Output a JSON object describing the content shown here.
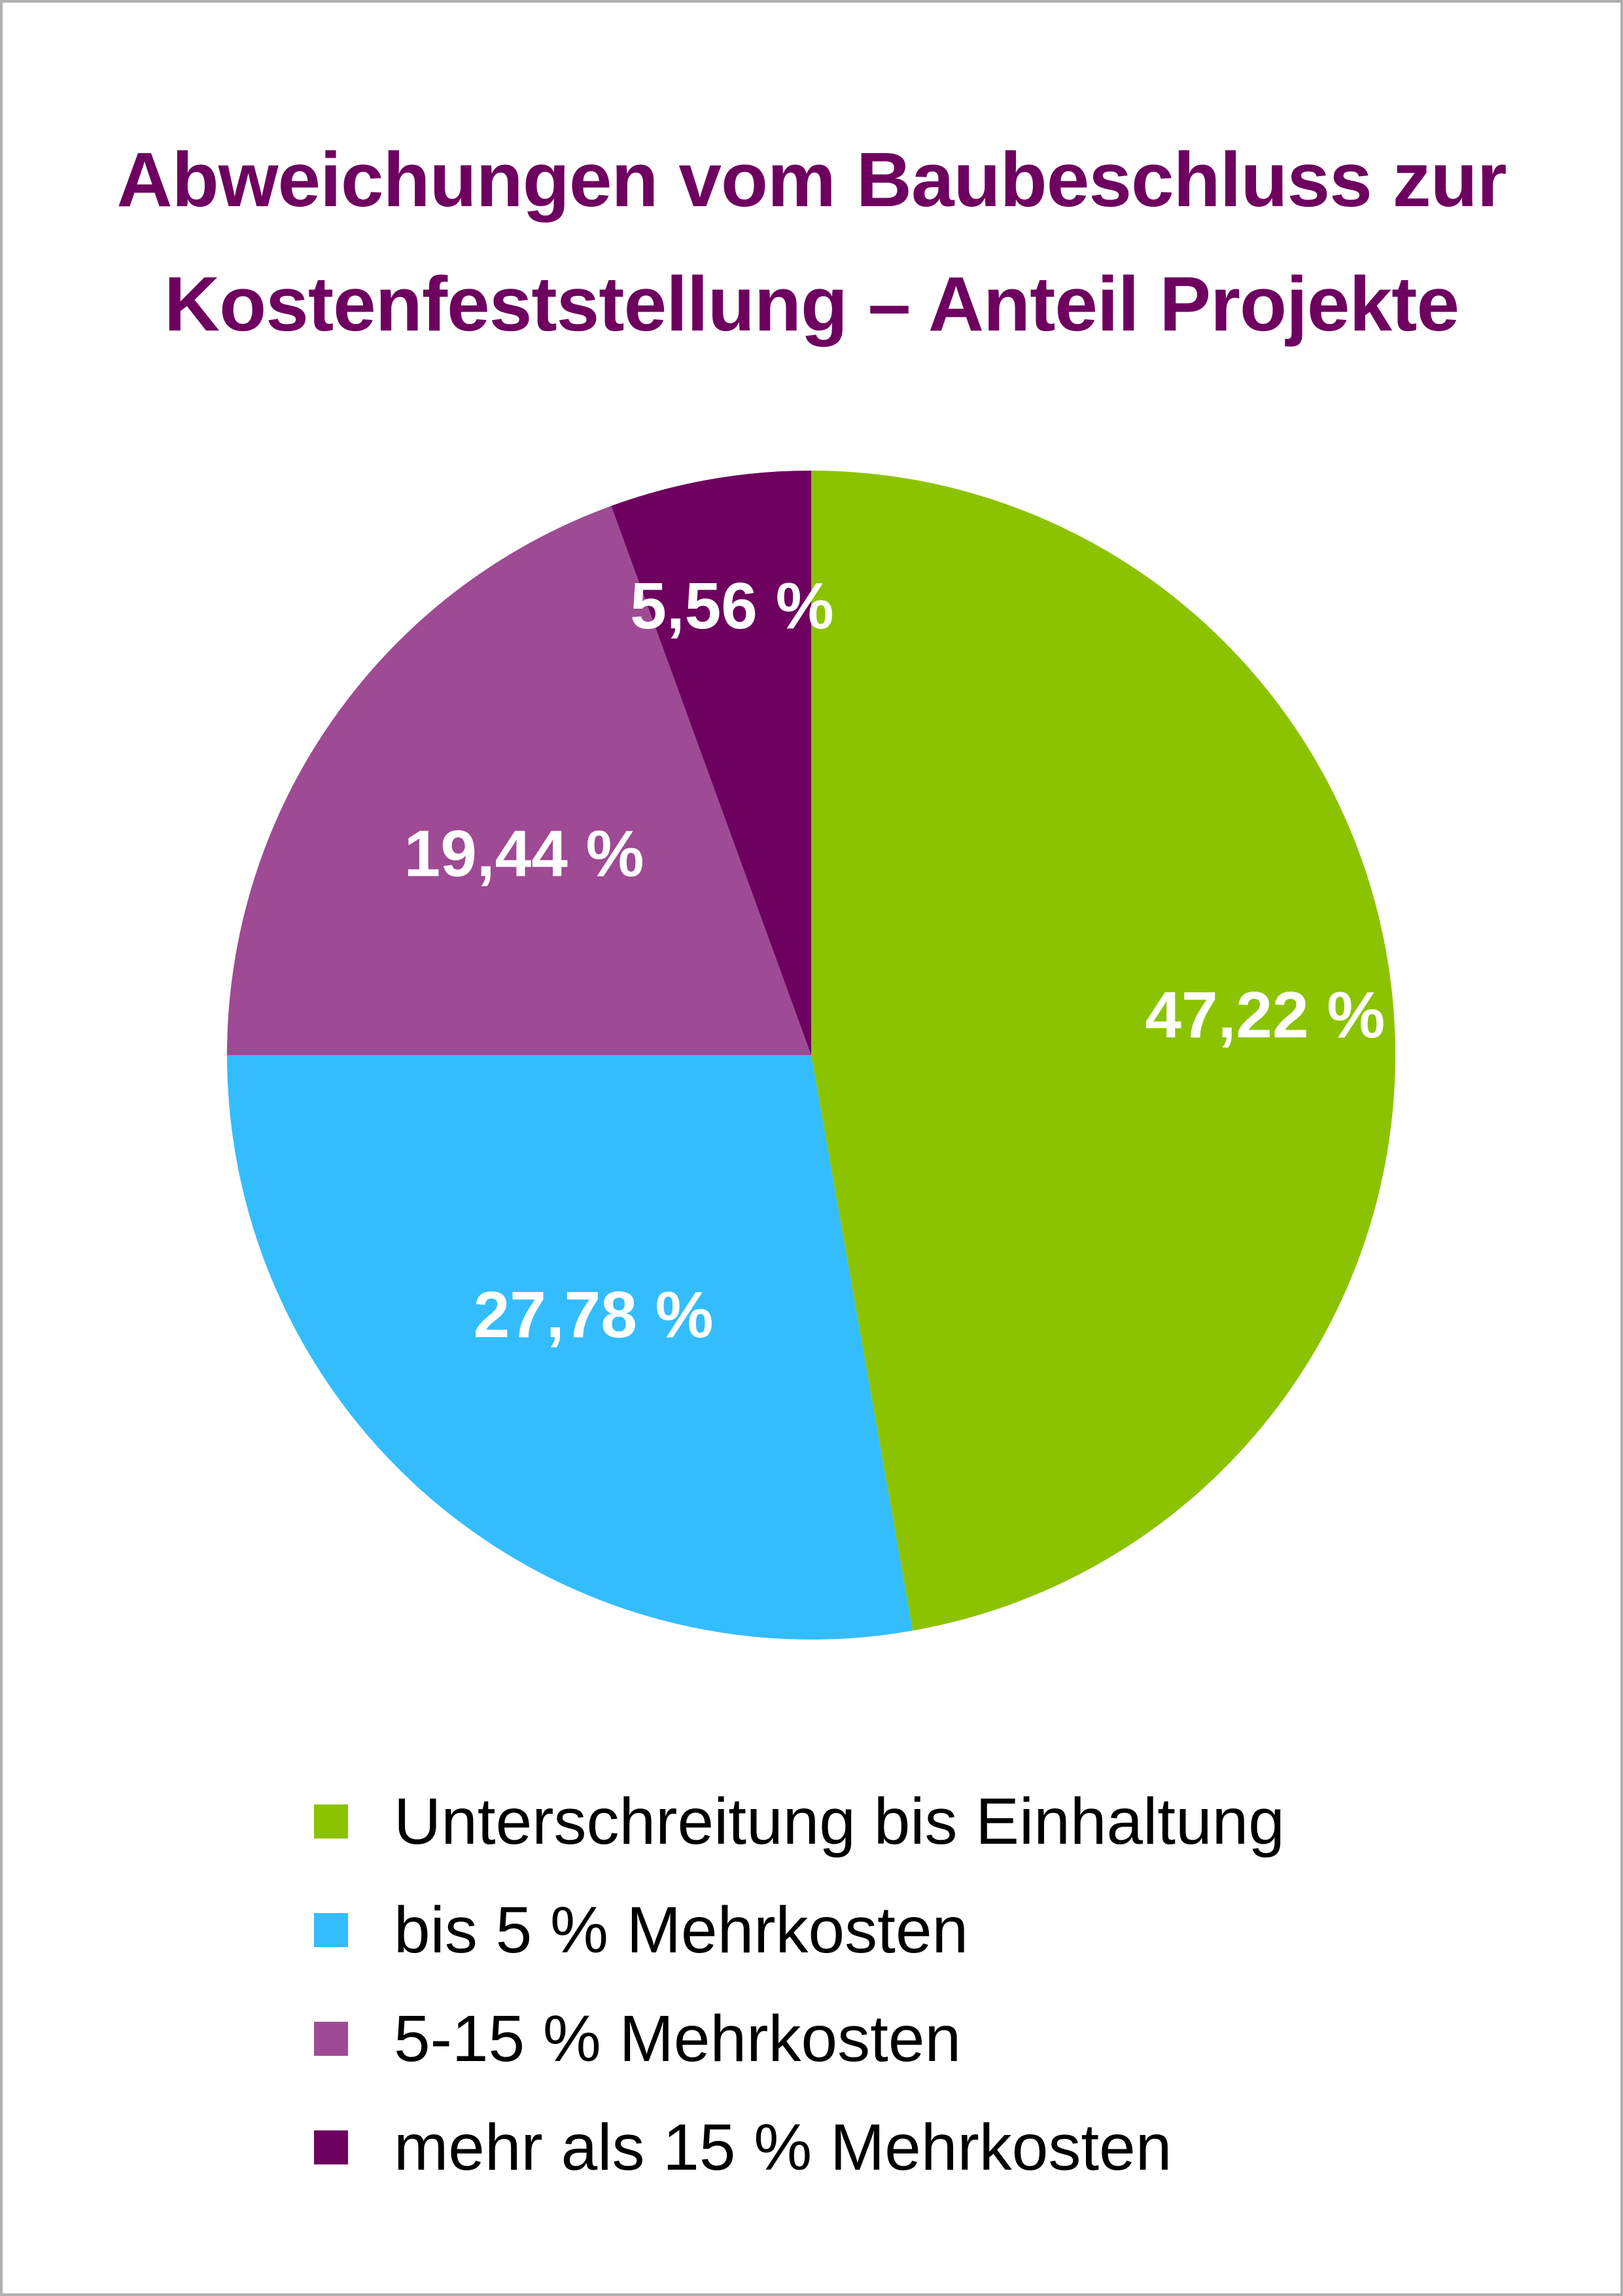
{
  "chart_data": {
    "type": "pie",
    "title_lines": [
      "Abweichungen vom Baubeschluss zur",
      "Kostenfeststellung – Anteil Projekte"
    ],
    "legend_placement": "bottom",
    "slices": [
      {
        "name": "Unterschreitung bis Einhaltung",
        "value": 47.22,
        "label": "47,22 %",
        "color": "#8cc300"
      },
      {
        "name": "bis 5 % Mehrkosten",
        "value": 27.78,
        "label": "27,78 %",
        "color": "#33bdfd"
      },
      {
        "name": "5-15 % Mehrkosten",
        "value": 19.44,
        "label": "19,44 %",
        "color": "#9e4a94"
      },
      {
        "name": "mehr als 15 % Mehrkosten",
        "value": 5.56,
        "label": "5,56 %",
        "color": "#6e005f"
      }
    ]
  }
}
